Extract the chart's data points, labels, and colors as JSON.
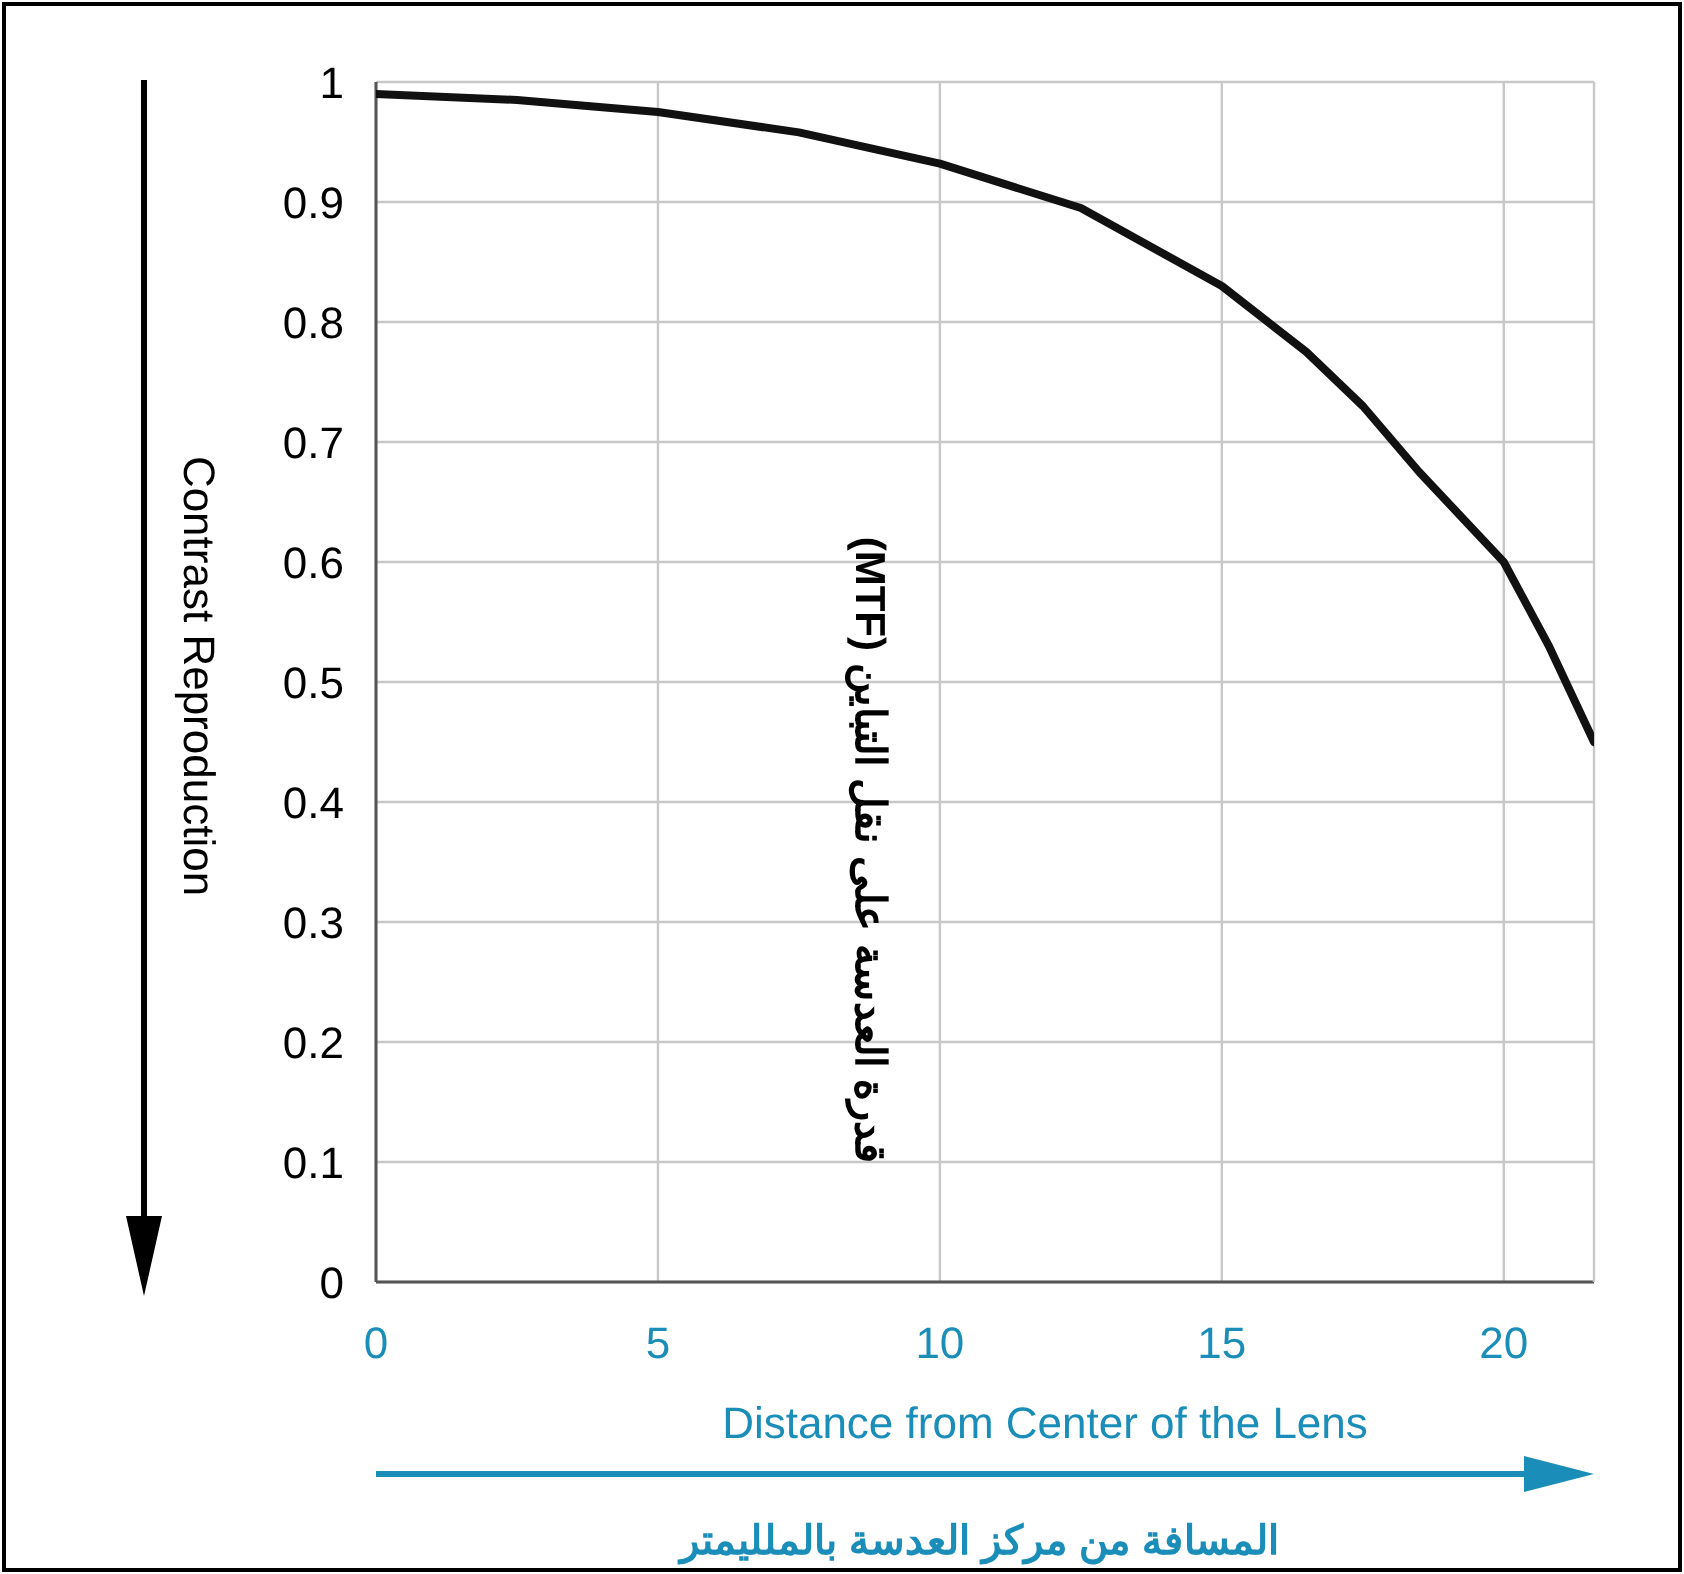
{
  "chart_data": {
    "type": "line",
    "xlabel": "Distance from Center of the Lens",
    "ylabel": "Contrast Reproduction",
    "annotations": [
      "قدرة العدسة على نقل التباين (MTF)",
      "المسافة من مركز العدسة بالملليمتر"
    ],
    "xlim": [
      0,
      21.6
    ],
    "ylim": [
      0,
      1
    ],
    "xticks": [
      0,
      5,
      10,
      15,
      20
    ],
    "yticks": [
      0,
      0.1,
      0.2,
      0.3,
      0.4,
      0.5,
      0.6,
      0.7,
      0.8,
      0.9,
      1
    ],
    "grid": true,
    "marker": "none",
    "line_style": "solid",
    "series": [
      {
        "color": "#111111",
        "x": [
          0,
          2.5,
          5,
          7.5,
          10,
          12.5,
          15,
          16.5,
          17.5,
          18.5,
          19.5,
          20,
          20.8,
          21.6
        ],
        "values": [
          0.99,
          0.985,
          0.975,
          0.958,
          0.932,
          0.895,
          0.83,
          0.775,
          0.73,
          0.675,
          0.625,
          0.6,
          0.53,
          0.45
        ]
      }
    ]
  }
}
